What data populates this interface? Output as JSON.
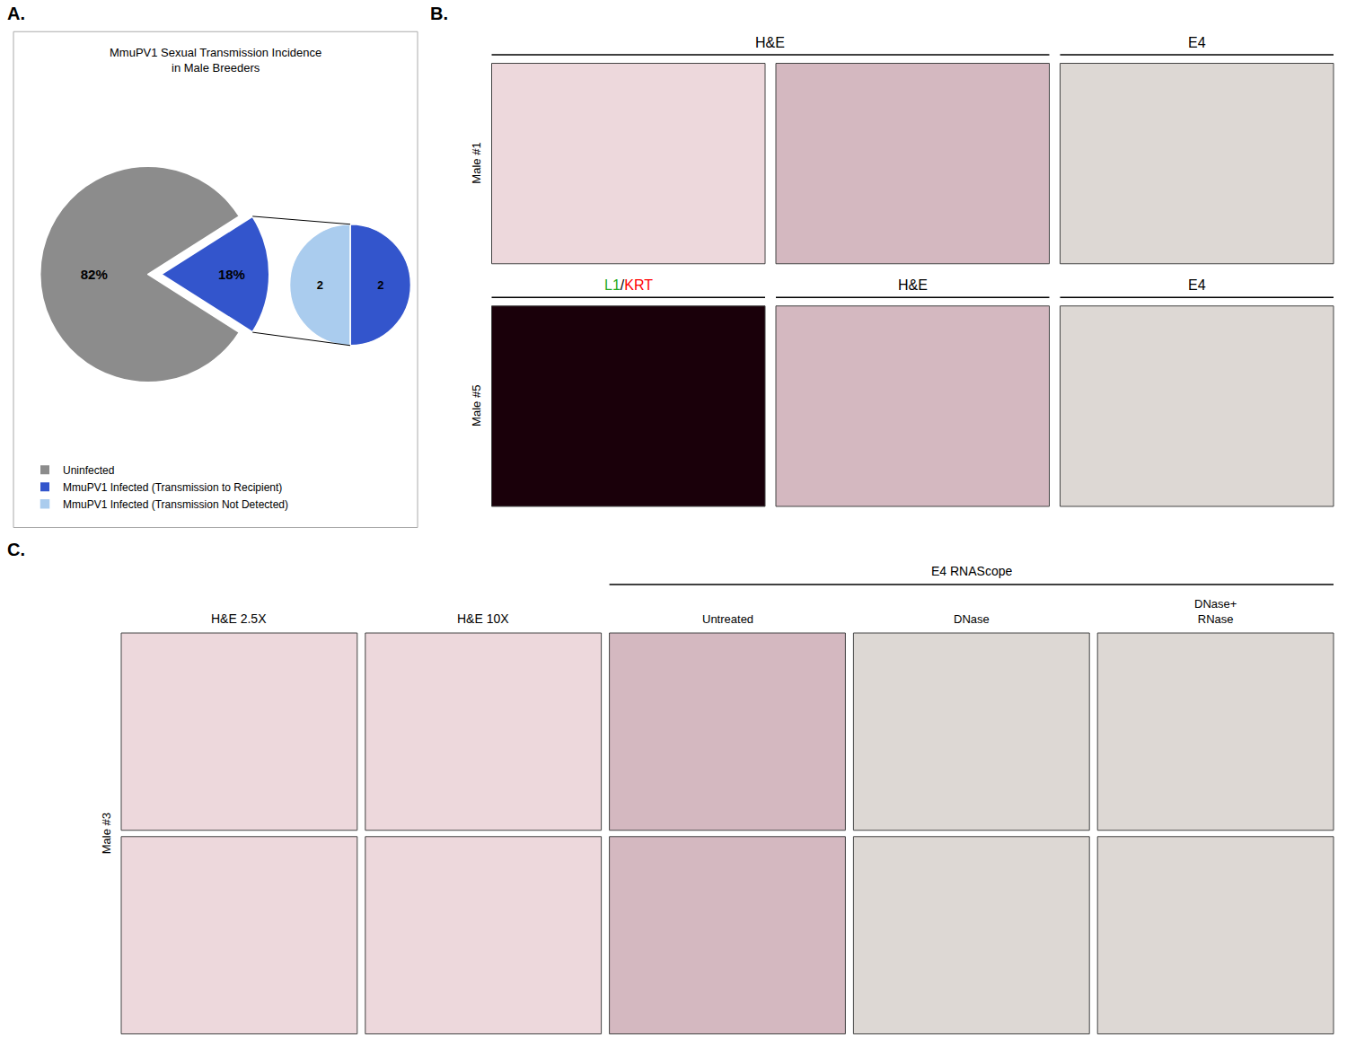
{
  "chart_data": [
    {
      "type": "pie",
      "title": "MmuPV1 Sexual Transmission Incidence\nin Male Breeders",
      "annotations": [
        "A."
      ],
      "categories": [
        "Uninfected",
        "MmuPV1 Infected (Transmission to Recipient)"
      ],
      "values": [
        82,
        18
      ],
      "value_labels": [
        "82%",
        "18%"
      ],
      "colors": [
        "#8c8c8c",
        "#3355cc"
      ],
      "data_labels": true,
      "legend": "bottom left"
    },
    {
      "type": "pie",
      "categories": [
        "MmuPV1 Infected (Transmission to Recipient)",
        "MmuPV1 Infected (Transmission Not Detected)"
      ],
      "values": [
        2,
        2
      ],
      "colors": [
        "#3355cc",
        "#aaccee"
      ],
      "data_labels": true
    },
    {
      "type": "image_grid",
      "title": "B.",
      "annotations": [
        {
          "text": "H&E"
        },
        {
          "text": "E4"
        },
        {
          "text": "L1",
          "color": "#22aa22"
        },
        {
          "text": "/",
          "color": "#000000"
        },
        {
          "text": "KRT",
          "color": "#ff0000"
        },
        {
          "text": "H&E"
        },
        {
          "text": "E4"
        },
        {
          "text": "Male #1"
        },
        {
          "text": "Male #5"
        }
      ],
      "colors": [
        "#edd8dc",
        "#d4b8c0",
        "#ddd8d4",
        "#1a000a",
        "#d4b8c0",
        "#ddd8d4"
      ]
    },
    {
      "type": "image_grid",
      "title": "C.",
      "annotations": [
        {
          "text": "H&E 2.5X"
        },
        {
          "text": "H&E 10X"
        },
        {
          "text": "E4 RNAScope"
        },
        {
          "text": "Untreated"
        },
        {
          "text": "DNase"
        },
        {
          "text": "DNase+\nRNase"
        },
        {
          "text": "Male #3"
        }
      ],
      "colors": [
        "#edd8dc",
        "#edd8dc",
        "#d4b8c0",
        "#ddd8d4",
        "#ddd8d4",
        "#edd8dc",
        "#edd8dc",
        "#d4b8c0",
        "#ddd8d4",
        "#ddd8d4"
      ]
    }
  ]
}
